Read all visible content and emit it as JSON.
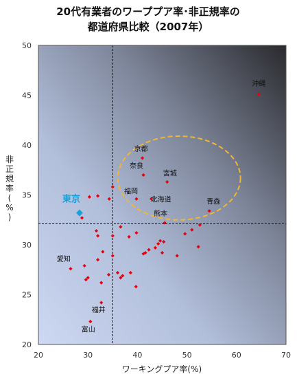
{
  "chart_data": {
    "type": "scatter",
    "title": [
      "20代有業者のワーププア率･非正規率の",
      "都道府県比較（2007年）"
    ],
    "xlabel": "ワーキングプア率(%)",
    "ylabel": "非正規率(%)",
    "xlim": [
      20,
      70
    ],
    "ylim": [
      20,
      50
    ],
    "xticks": [
      "20",
      "30",
      "40",
      "50",
      "60",
      "70"
    ],
    "yticks": [
      "20",
      "25",
      "30",
      "35",
      "40",
      "45",
      "50"
    ],
    "reference_lines": {
      "x": 35,
      "y": 32.1
    },
    "grid": false,
    "background": "blue-to-dark gradient",
    "colors": {
      "points": "#e8000d",
      "highlight": "#1aa0d8",
      "ellipse": "#f2b632"
    },
    "highlight": {
      "label": "東京",
      "x": 28.3,
      "y": 33.2
    },
    "labeled_points": [
      {
        "label": "沖縄",
        "x": 64.5,
        "y": 45.1
      },
      {
        "label": "京都",
        "x": 41.0,
        "y": 38.7
      },
      {
        "label": "奈良",
        "x": 41.2,
        "y": 37.0
      },
      {
        "label": "宮城",
        "x": 46.0,
        "y": 36.3
      },
      {
        "label": "福岡",
        "x": 39.8,
        "y": 34.6
      },
      {
        "label": "北海道",
        "x": 42.8,
        "y": 34.6
      },
      {
        "label": "青森",
        "x": 54.5,
        "y": 33.4
      },
      {
        "label": "熊本",
        "x": 45.5,
        "y": 32.2
      },
      {
        "label": "愛知",
        "x": 26.5,
        "y": 27.6
      },
      {
        "label": "福井",
        "x": 32.7,
        "y": 24.2
      },
      {
        "label": "富山",
        "x": 30.5,
        "y": 22.3
      }
    ],
    "points": [
      [
        28.8,
        32.7
      ],
      [
        30.3,
        34.8
      ],
      [
        32.0,
        34.9
      ],
      [
        34.3,
        34.6
      ],
      [
        35.0,
        35.8
      ],
      [
        31.7,
        31.4
      ],
      [
        32.0,
        30.9
      ],
      [
        35.0,
        30.9
      ],
      [
        36.6,
        31.8
      ],
      [
        38.3,
        30.8
      ],
      [
        39.8,
        31.2
      ],
      [
        49.6,
        31.1
      ],
      [
        51.0,
        31.5
      ],
      [
        52.6,
        32.0
      ],
      [
        35.0,
        28.9
      ],
      [
        33.0,
        29.3
      ],
      [
        32.0,
        28.5
      ],
      [
        29.3,
        27.9
      ],
      [
        29.6,
        26.5
      ],
      [
        30.0,
        26.7
      ],
      [
        32.7,
        26.2
      ],
      [
        34.2,
        27.0
      ],
      [
        36.0,
        27.2
      ],
      [
        36.6,
        26.7
      ],
      [
        37.0,
        26.9
      ],
      [
        38.6,
        27.2
      ],
      [
        39.7,
        25.8
      ],
      [
        41.2,
        29.1
      ],
      [
        41.6,
        29.2
      ],
      [
        42.3,
        29.5
      ],
      [
        43.6,
        29.7
      ],
      [
        44.2,
        30.1
      ],
      [
        44.6,
        30.4
      ],
      [
        45.3,
        30.3
      ],
      [
        45.0,
        29.2
      ],
      [
        48.0,
        28.9
      ],
      [
        52.3,
        29.8
      ]
    ]
  }
}
